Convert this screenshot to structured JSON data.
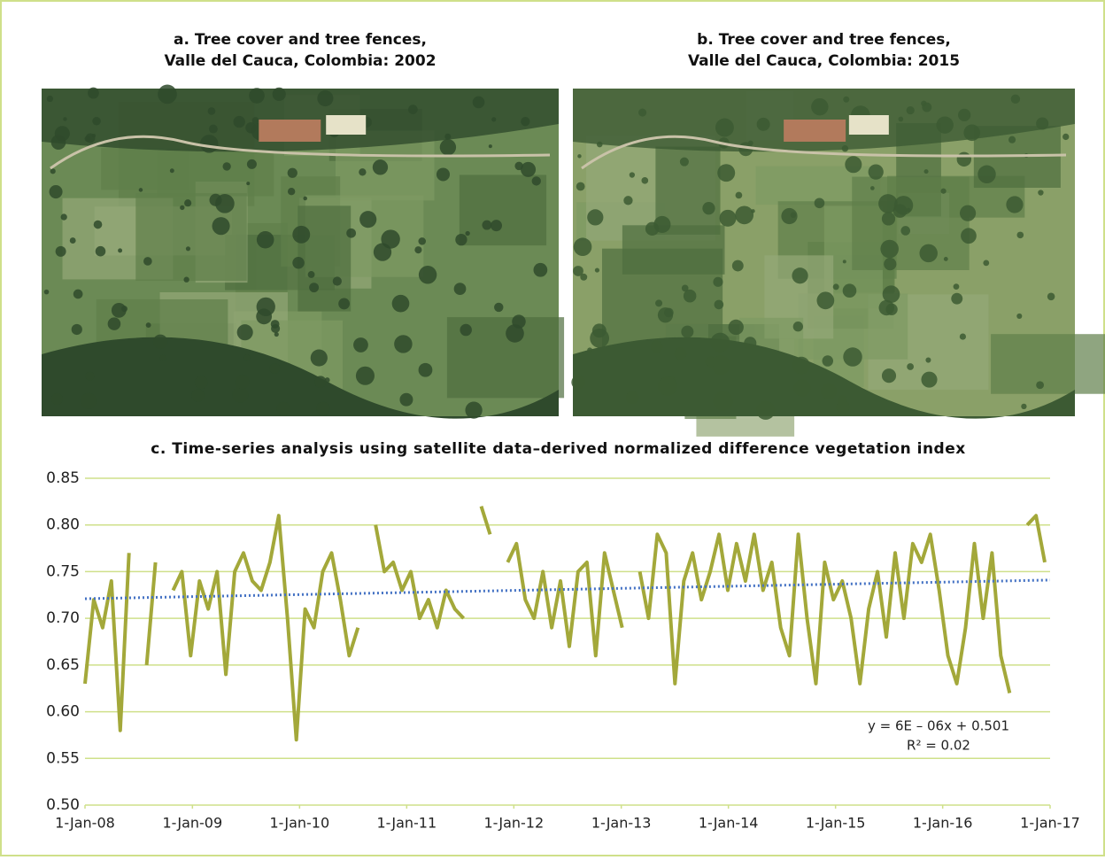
{
  "images": [
    {
      "title_lines": [
        "a. Tree cover and tree fences,",
        "Valle del Cauca, Colombia: 2002"
      ]
    },
    {
      "title_lines": [
        "b. Tree cover and tree fences,",
        "Valle del Cauca, Colombia: 2015"
      ]
    }
  ],
  "chart_data": {
    "type": "line",
    "title": "c. Time-series analysis using satellite data–derived normalized difference vegetation index",
    "xlim": [
      39448,
      42736
    ],
    "xticks": [
      {
        "value": 39448,
        "label": "1-Jan-08"
      },
      {
        "value": 39814,
        "label": "1-Jan-09"
      },
      {
        "value": 40179,
        "label": "1-Jan-10"
      },
      {
        "value": 40544,
        "label": "1-Jan-11"
      },
      {
        "value": 40909,
        "label": "1-Jan-12"
      },
      {
        "value": 41275,
        "label": "1-Jan-13"
      },
      {
        "value": 41640,
        "label": "1-Jan-14"
      },
      {
        "value": 42005,
        "label": "1-Jan-15"
      },
      {
        "value": 42370,
        "label": "1-Jan-16"
      },
      {
        "value": 42736,
        "label": "1-Jan-17"
      }
    ],
    "ylim": [
      0.5,
      0.85
    ],
    "yticks": [
      {
        "value": 0.5,
        "label": "0.50"
      },
      0.55,
      {
        "value": 0.6,
        "label": "0.60"
      },
      0.65,
      {
        "value": 0.7,
        "label": "0.70"
      },
      0.75,
      {
        "value": 0.8,
        "label": "0.80"
      },
      0.85
    ],
    "grid": true,
    "series": [
      {
        "color": "#a3a83a",
        "x": [
          39448,
          39478,
          39508,
          39538,
          39568,
          39598,
          39628,
          39658,
          39688,
          39718,
          39748,
          39778,
          39808,
          39838,
          39868,
          39898,
          39928,
          39958,
          39988,
          40018,
          40048,
          40078,
          40108,
          40138,
          40168,
          40198,
          40228,
          40258,
          40288,
          40318,
          40348,
          40378,
          40408,
          40438,
          40468,
          40498,
          40528,
          40558,
          40588,
          40618,
          40648,
          40678,
          40708,
          40738,
          40768,
          40798,
          40828,
          40858,
          40888,
          40918,
          40948,
          40978,
          41008,
          41038,
          41068,
          41098,
          41128,
          41158,
          41188,
          41218,
          41248,
          41278,
          41308,
          41338,
          41368,
          41398,
          41428,
          41458,
          41488,
          41518,
          41548,
          41578,
          41608,
          41638,
          41668,
          41698,
          41728,
          41758,
          41788,
          41818,
          41848,
          41878,
          41908,
          41938,
          41968,
          41998,
          42028,
          42058,
          42088,
          42118,
          42148,
          42178,
          42208,
          42238,
          42268,
          42298,
          42328,
          42358,
          42388,
          42418,
          42448,
          42478,
          42508,
          42538,
          42568,
          42598,
          42628,
          42658,
          42688,
          42718
        ],
        "values": [
          0.63,
          0.72,
          0.69,
          0.74,
          0.58,
          0.77,
          null,
          0.65,
          0.76,
          null,
          0.73,
          0.75,
          0.66,
          0.74,
          0.71,
          0.75,
          0.64,
          0.75,
          0.77,
          0.74,
          0.73,
          0.76,
          0.81,
          0.7,
          0.57,
          0.71,
          0.69,
          0.75,
          0.77,
          0.72,
          0.66,
          0.69,
          null,
          0.8,
          0.75,
          0.76,
          0.73,
          0.75,
          0.7,
          0.72,
          0.69,
          0.73,
          0.71,
          0.7,
          null,
          0.82,
          0.79,
          null,
          0.76,
          0.78,
          0.72,
          0.7,
          0.75,
          0.69,
          0.74,
          0.67,
          0.75,
          0.76,
          0.66,
          0.77,
          0.73,
          0.69,
          null,
          0.75,
          0.7,
          0.79,
          0.77,
          0.63,
          0.74,
          0.77,
          0.72,
          0.75,
          0.79,
          0.73,
          0.78,
          0.74,
          0.79,
          0.73,
          0.76,
          0.69,
          0.66,
          0.79,
          0.7,
          0.63,
          0.76,
          0.72,
          0.74,
          0.7,
          0.63,
          0.71,
          0.75,
          0.68,
          0.77,
          0.7,
          0.78,
          0.76,
          0.79,
          0.73,
          0.66,
          0.63,
          0.69,
          0.78,
          0.7,
          0.77,
          0.66,
          0.62,
          null,
          0.8,
          0.81,
          0.76
        ]
      }
    ],
    "trend": {
      "x": [
        39448,
        42736
      ],
      "values": [
        0.721,
        0.741
      ],
      "color": "#4472c4"
    },
    "annotations": [
      "y = 6E – 06x + 0.501",
      "R² = 0.02"
    ]
  }
}
